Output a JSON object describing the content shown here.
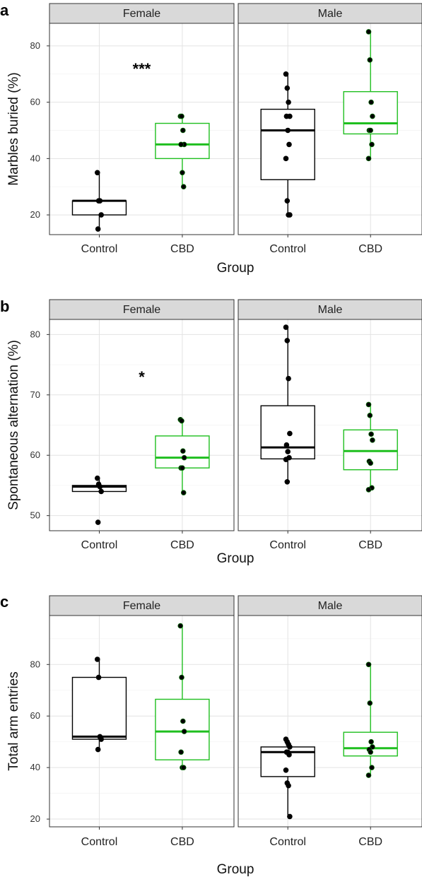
{
  "chart_data": [
    {
      "type": "box",
      "panel_label": "a",
      "ylabel": "Marbles buried (%)",
      "xlabel": "Group",
      "ylim": [
        13,
        88
      ],
      "yticks": [
        20,
        40,
        60,
        80
      ],
      "grid": true,
      "categories": [
        "Control",
        "CBD"
      ],
      "facets": [
        {
          "name": "Female",
          "annotation": {
            "text": "***",
            "x": 0.5,
            "y": 72
          },
          "groups": [
            {
              "category": "Control",
              "color": "#000000",
              "q1": 20,
              "median": 25,
              "q3": 25,
              "whisker_low": 15,
              "whisker_high": 35,
              "points": [
                35,
                25,
                25,
                20,
                15
              ]
            },
            {
              "category": "CBD",
              "color": "#1fbf1f",
              "q1": 40,
              "median": 45,
              "q3": 52.5,
              "whisker_low": 30,
              "whisker_high": 55,
              "points": [
                55,
                55,
                50,
                45,
                45,
                35,
                30
              ]
            }
          ]
        },
        {
          "name": "Male",
          "groups": [
            {
              "category": "Control",
              "color": "#000000",
              "q1": 32.5,
              "median": 50,
              "q3": 57.5,
              "whisker_low": 20,
              "whisker_high": 70,
              "points": [
                70,
                65,
                60,
                55,
                55,
                50,
                45,
                40,
                25,
                20,
                20
              ]
            },
            {
              "category": "CBD",
              "color": "#1fbf1f",
              "q1": 48.75,
              "median": 52.5,
              "q3": 63.75,
              "whisker_low": 40,
              "whisker_high": 85,
              "points": [
                85,
                75,
                60,
                55,
                50,
                50,
                45,
                40
              ]
            }
          ]
        }
      ]
    },
    {
      "type": "box",
      "panel_label": "b",
      "ylabel": "Spontaneous alternation (%)",
      "xlabel": "Group",
      "ylim": [
        47.5,
        82.5
      ],
      "yticks": [
        50,
        60,
        70,
        80
      ],
      "grid": true,
      "categories": [
        "Control",
        "CBD"
      ],
      "facets": [
        {
          "name": "Female",
          "annotation": {
            "text": "*",
            "x": 0.5,
            "y": 73
          },
          "groups": [
            {
              "category": "Control",
              "color": "#000000",
              "q1": 54.0,
              "median": 54.8,
              "q3": 55.0,
              "whisker_low": 54.0,
              "whisker_high": 56.2,
              "points": [
                56.2,
                55.2,
                54.8,
                54.0,
                48.9
              ]
            },
            {
              "category": "CBD",
              "color": "#1fbf1f",
              "q1": 57.9,
              "median": 59.6,
              "q3": 63.2,
              "whisker_low": 53.8,
              "whisker_high": 65.9,
              "points": [
                65.9,
                65.7,
                60.7,
                59.6,
                57.9,
                57.9,
                53.8
              ]
            }
          ]
        },
        {
          "name": "Male",
          "groups": [
            {
              "category": "Control",
              "color": "#000000",
              "q1": 59.4,
              "median": 61.3,
              "q3": 68.2,
              "whisker_low": 55.6,
              "whisker_high": 81.2,
              "points": [
                81.2,
                79.0,
                72.7,
                63.6,
                61.7,
                60.6,
                59.6,
                59.3,
                55.6
              ]
            },
            {
              "category": "CBD",
              "color": "#1fbf1f",
              "q1": 57.6,
              "median": 60.7,
              "q3": 64.2,
              "whisker_low": 54.3,
              "whisker_high": 68.4,
              "points": [
                68.4,
                66.6,
                63.5,
                62.5,
                59.0,
                58.7,
                54.6,
                54.3
              ]
            }
          ]
        }
      ]
    },
    {
      "type": "box",
      "panel_label": "c",
      "ylabel": "Total arm entries",
      "xlabel": "Group",
      "ylim": [
        17,
        99
      ],
      "yticks": [
        20,
        40,
        60,
        80
      ],
      "grid": true,
      "categories": [
        "Control",
        "CBD"
      ],
      "facets": [
        {
          "name": "Female",
          "groups": [
            {
              "category": "Control",
              "color": "#000000",
              "q1": 51,
              "median": 52,
              "q3": 75,
              "whisker_low": 47,
              "whisker_high": 82,
              "points": [
                82,
                75,
                52,
                51,
                47
              ]
            },
            {
              "category": "CBD",
              "color": "#1fbf1f",
              "q1": 43,
              "median": 54,
              "q3": 66.5,
              "whisker_low": 40,
              "whisker_high": 95,
              "points": [
                95,
                75,
                58,
                54,
                46,
                40,
                40
              ]
            }
          ]
        },
        {
          "name": "Male",
          "groups": [
            {
              "category": "Control",
              "color": "#000000",
              "q1": 36.5,
              "median": 46,
              "q3": 48,
              "whisker_low": 21,
              "whisker_high": 51,
              "points": [
                51,
                50,
                49,
                48,
                46,
                46,
                45,
                39,
                34,
                33,
                21
              ]
            },
            {
              "category": "CBD",
              "color": "#1fbf1f",
              "q1": 44.5,
              "median": 47.5,
              "q3": 53.7,
              "whisker_low": 37,
              "whisker_high": 80,
              "points": [
                80,
                65,
                50,
                48,
                47,
                46,
                40,
                37
              ]
            }
          ]
        }
      ]
    }
  ]
}
